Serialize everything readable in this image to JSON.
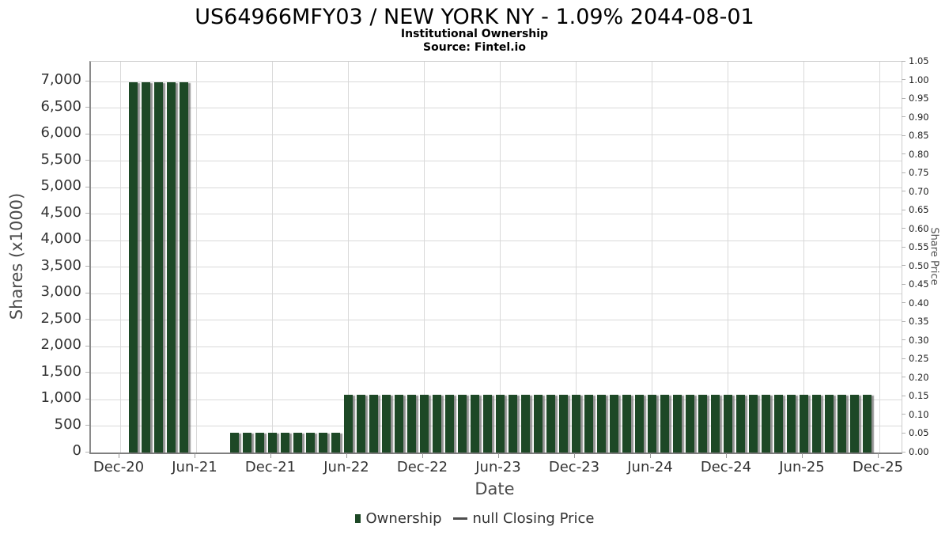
{
  "title": "US64966MFY03 / NEW YORK NY - 1.09% 2044-08-01",
  "subtitle_line1": "Institutional Ownership",
  "subtitle_line2": "Source: Fintel.io",
  "legend": {
    "ownership_label": "Ownership",
    "price_label": "null Closing Price"
  },
  "chart_data": {
    "type": "bar",
    "title": "US64966MFY03 / NEW YORK NY - 1.09% 2044-08-01",
    "subtitle": "Institutional Ownership — Source: Fintel.io",
    "xlabel": "Date",
    "ylabel_left": "Shares (x1000)",
    "ylabel_right": "Share Price",
    "x_tick_labels": [
      "Dec-20",
      "Jun-21",
      "Dec-21",
      "Jun-22",
      "Dec-22",
      "Jun-23",
      "Dec-23",
      "Jun-24",
      "Dec-24",
      "Jun-25",
      "Dec-25"
    ],
    "y_left_tick_labels": [
      "0",
      "500",
      "1,000",
      "1,500",
      "2,000",
      "2,500",
      "3,000",
      "3,500",
      "4,000",
      "4,500",
      "5,000",
      "5,500",
      "6,000",
      "6,500",
      "7,000"
    ],
    "y_left_tick_step": 500,
    "y_left_axis_range": [
      0,
      7350
    ],
    "y_right_tick_labels": [
      "0.00",
      "0.05",
      "0.10",
      "0.15",
      "0.20",
      "0.25",
      "0.30",
      "0.35",
      "0.40",
      "0.45",
      "0.50",
      "0.55",
      "0.60",
      "0.65",
      "0.70",
      "0.75",
      "0.80",
      "0.85",
      "0.90",
      "0.95",
      "1.00",
      "1.05"
    ],
    "y_right_axis_range": [
      0.0,
      1.05
    ],
    "grid": true,
    "legend_position": "bottom-center",
    "categories": [
      "Dec-20",
      "Jan-21",
      "Feb-21",
      "Mar-21",
      "Apr-21",
      "May-21",
      "Jun-21",
      "Jul-21",
      "Aug-21",
      "Sep-21",
      "Oct-21",
      "Nov-21",
      "Dec-21",
      "Jan-22",
      "Feb-22",
      "Mar-22",
      "Apr-22",
      "May-22",
      "Jun-22",
      "Jul-22",
      "Aug-22",
      "Sep-22",
      "Oct-22",
      "Nov-22",
      "Dec-22",
      "Jan-23",
      "Feb-23",
      "Mar-23",
      "Apr-23",
      "May-23",
      "Jun-23",
      "Jul-23",
      "Aug-23",
      "Sep-23",
      "Oct-23",
      "Nov-23",
      "Dec-23",
      "Jan-24",
      "Feb-24",
      "Mar-24",
      "Apr-24",
      "May-24",
      "Jun-24",
      "Jul-24",
      "Aug-24",
      "Sep-24",
      "Oct-24",
      "Nov-24",
      "Dec-24",
      "Jan-25",
      "Feb-25",
      "Mar-25",
      "Apr-25",
      "May-25",
      "Jun-25",
      "Jul-25",
      "Aug-25",
      "Sep-25",
      "Oct-25",
      "Nov-25"
    ],
    "series": [
      {
        "name": "Ownership",
        "unit": "shares x1000",
        "color": "#1d4826",
        "values": [
          null,
          6990,
          6990,
          6990,
          6990,
          6990,
          null,
          null,
          null,
          380,
          380,
          380,
          380,
          380,
          380,
          380,
          380,
          380,
          1090,
          1090,
          1090,
          1090,
          1090,
          1090,
          1090,
          1090,
          1090,
          1090,
          1090,
          1090,
          1090,
          1090,
          1090,
          1090,
          1090,
          1090,
          1090,
          1090,
          1090,
          1090,
          1090,
          1090,
          1090,
          1090,
          1090,
          1090,
          1090,
          1090,
          1090,
          1090,
          1090,
          1090,
          1090,
          1090,
          1090,
          1090,
          1090,
          1090,
          1090,
          1090
        ]
      },
      {
        "name": "null Closing Price",
        "type": "line",
        "color": "#4d4d4d",
        "values": []
      }
    ],
    "colors": {
      "bar_green": "#1d4826",
      "bar_shadow": "#8f8f8f",
      "gridline": "#d9d9d9",
      "axis_light": "#cccccc",
      "axis_dark": "#7f7f7f",
      "tick_text": "#333333",
      "title_text": "#000000"
    }
  }
}
